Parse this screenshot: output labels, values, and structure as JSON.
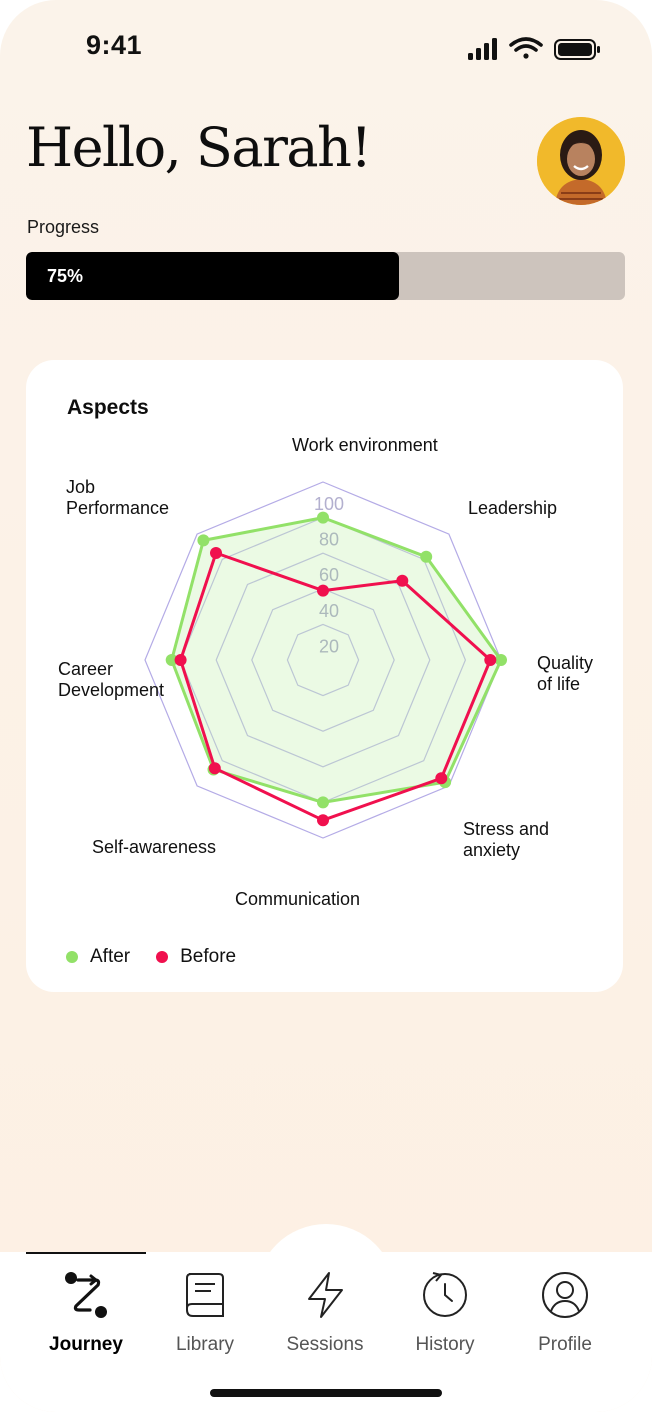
{
  "status_bar": {
    "time": "9:41"
  },
  "header": {
    "greeting": "Hello, Sarah!"
  },
  "progress": {
    "label": "Progress",
    "value_text": "75%",
    "value": 0.75
  },
  "aspects": {
    "title": "Aspects",
    "chart_data": {
      "type": "radar",
      "axes": [
        "Work environment",
        "Leadership",
        "Quality of life",
        "Stress and anxiety",
        "Communication",
        "Self-awareness",
        "Career Development",
        "Job Performance"
      ],
      "axis_labels": {
        "work_environment": "Work environment",
        "leadership": "Leadership",
        "quality_of_life": [
          "Quality",
          "of life"
        ],
        "stress_and_anxiety": [
          "Stress and",
          "anxiety"
        ],
        "communication": "Communication",
        "self_awareness": "Self-awareness",
        "career_development": [
          "Career",
          "Development"
        ],
        "job_performance": [
          "Job",
          "Performance"
        ]
      },
      "tick_labels": [
        "20",
        "40",
        "60",
        "80",
        "100"
      ],
      "rlim": [
        0,
        100
      ],
      "series": [
        {
          "name": "After",
          "color": "#92e168",
          "values": [
            80,
            82,
            100,
            97,
            80,
            87,
            85,
            95
          ]
        },
        {
          "name": "Before",
          "color": "#f0104e",
          "values": [
            39,
            63,
            94,
            94,
            90,
            86,
            80,
            85
          ]
        }
      ],
      "legend": "bottom-left"
    }
  },
  "tabbar": {
    "items": [
      {
        "label": "Journey",
        "icon": "journey-icon",
        "active": true
      },
      {
        "label": "Library",
        "icon": "book-icon",
        "active": false
      },
      {
        "label": "Sessions",
        "icon": "lightning-icon",
        "active": false
      },
      {
        "label": "History",
        "icon": "clock-icon",
        "active": false
      },
      {
        "label": "Profile",
        "icon": "user-icon",
        "active": false
      }
    ]
  }
}
